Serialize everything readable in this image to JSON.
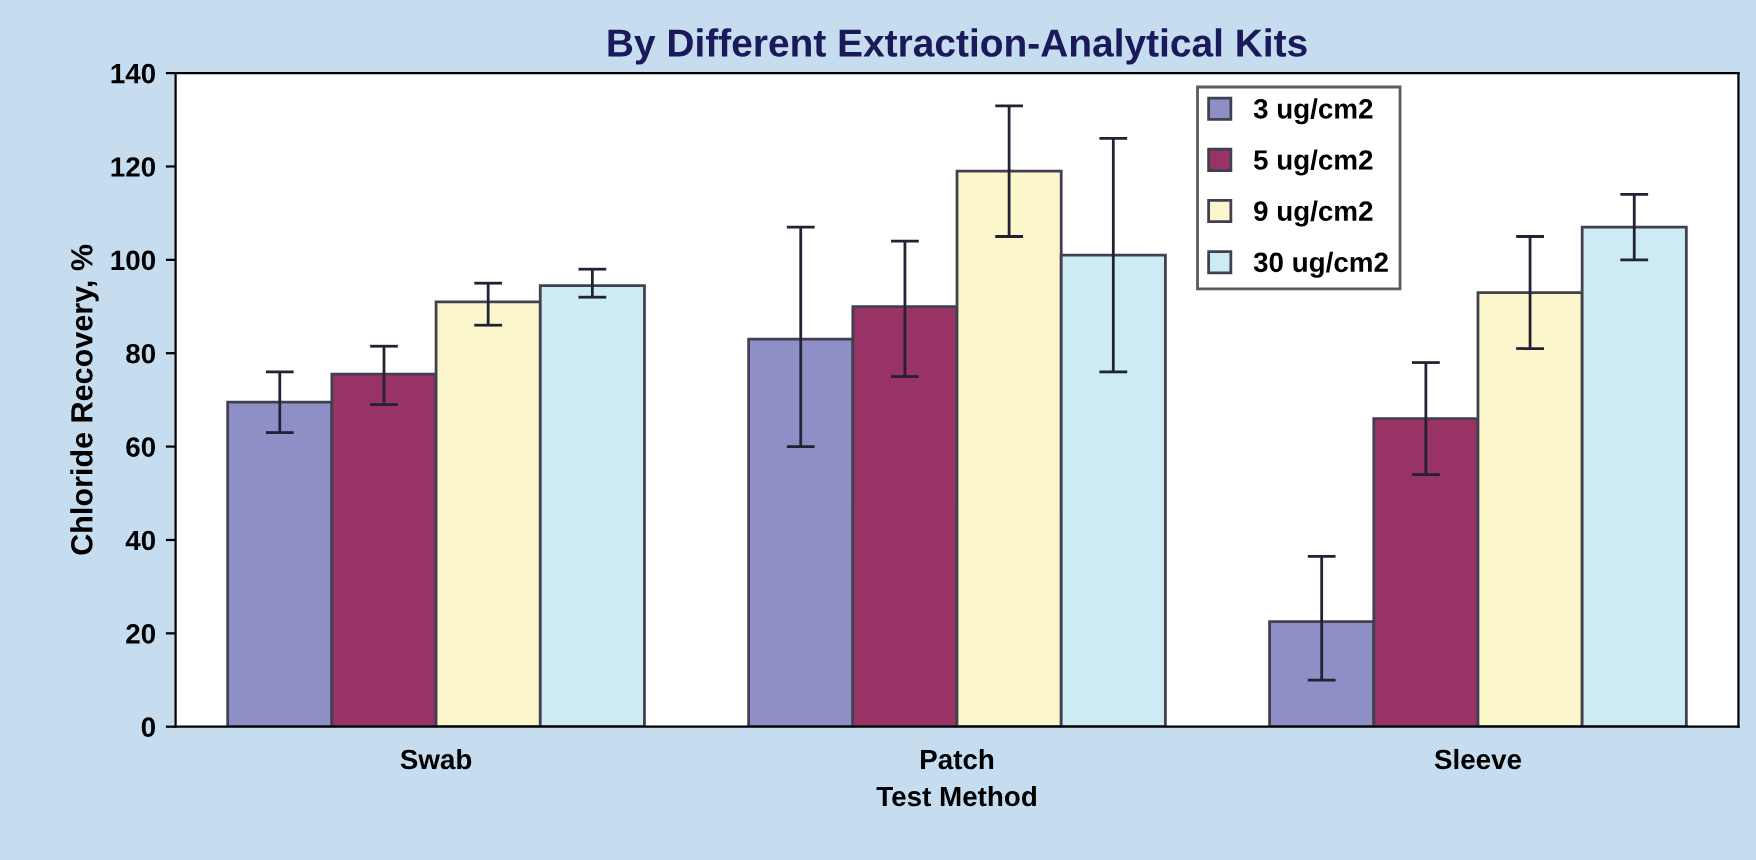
{
  "chart_data": {
    "type": "bar",
    "title": "By Different Extraction-Analytical Kits",
    "xlabel": "Test Method",
    "ylabel": "Chloride Recovery, %",
    "categories": [
      "Swab",
      "Patch",
      "Sleeve"
    ],
    "series": [
      {
        "name": "3 ug/cm2",
        "color": "#8f8fc8",
        "values": [
          69.5,
          83,
          22.5
        ],
        "errors": [
          [
            63,
            76
          ],
          [
            60,
            107
          ],
          [
            10,
            36.5
          ]
        ]
      },
      {
        "name": "5 ug/cm2",
        "color": "#993366",
        "values": [
          75.5,
          90,
          66
        ],
        "errors": [
          [
            69,
            81.5
          ],
          [
            75,
            104
          ],
          [
            54,
            78
          ]
        ]
      },
      {
        "name": "9 ug/cm2",
        "color": "#fcf6cc",
        "values": [
          91,
          119,
          93
        ],
        "errors": [
          [
            86,
            95
          ],
          [
            105,
            133
          ],
          [
            81,
            105
          ]
        ]
      },
      {
        "name": "30 ug/cm2",
        "color": "#ccebf2",
        "values": [
          94.5,
          101,
          107
        ],
        "errors": [
          [
            92,
            98
          ],
          [
            76,
            126
          ],
          [
            100,
            114
          ]
        ]
      }
    ],
    "ylim": [
      0,
      140
    ],
    "yticks": [
      0,
      20,
      40,
      60,
      80,
      100,
      120,
      140
    ],
    "grid": false,
    "legend": "top"
  }
}
